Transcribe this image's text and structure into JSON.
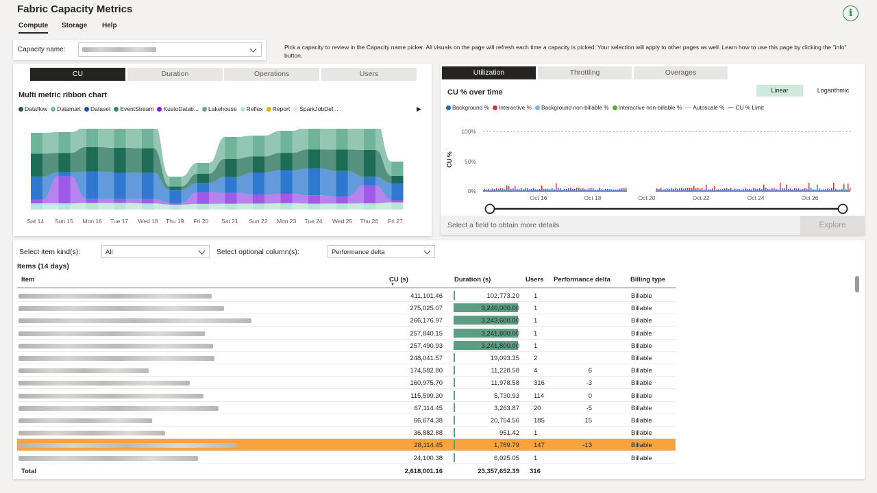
{
  "app_title": "Fabric Capacity Metrics",
  "nav": [
    "Compute",
    "Storage",
    "Help"
  ],
  "info_icon": "info-icon",
  "instruction": "Pick a capacity to review in the Capacity name picker. All visuals on the page will refresh each time a capacity is picked. Your selection will apply to other pages as well. Learn how to use this page by clicking the \"info\" button.",
  "capacity": {
    "label": "Capacity name:",
    "value_blurred": true
  },
  "left_tabs": [
    "CU",
    "Duration",
    "Operations",
    "Users"
  ],
  "ribbon": {
    "title": "Multi metric ribbon chart",
    "legend": [
      {
        "name": "Dataflow",
        "color": "#1e5b4a"
      },
      {
        "name": "Datamart",
        "color": "#7bb8a2"
      },
      {
        "name": "Dataset",
        "color": "#1a52b2"
      },
      {
        "name": "EventStream",
        "color": "#2f8a68"
      },
      {
        "name": "KustoDatab...",
        "color": "#7d1ee0"
      },
      {
        "name": "Lakehouse",
        "color": "#6ea58e"
      },
      {
        "name": "Reflex",
        "color": "#b9e4d2"
      },
      {
        "name": "Report",
        "color": "#e0b210"
      },
      {
        "name": "SparkJobDef...",
        "color": "#d4eee5"
      }
    ],
    "x_labels": [
      "Sat 14",
      "Sun 15",
      "Mon 16",
      "Tue 17",
      "Wed 18",
      "Thu 19",
      "Fri 20",
      "Sat 21",
      "Sun 22",
      "Mon 23",
      "Tue 24",
      "Wed 25",
      "Thu 26",
      "Fri 27"
    ]
  },
  "right_tabs": [
    "Utilization",
    "Throttling",
    "Overages"
  ],
  "cu_chart": {
    "title": "CU % over time",
    "toggle": [
      "Linear",
      "Logarithmic"
    ],
    "legend": [
      {
        "name": "Background %",
        "color": "#1a66c9"
      },
      {
        "name": "Interactive %",
        "color": "#d13438"
      },
      {
        "name": "Background non-billable %",
        "color": "#7fb6e8"
      },
      {
        "name": "Interactive non-billable %",
        "color": "#5ca82d"
      },
      {
        "name": "Autoscale %",
        "color": "#e6a055"
      },
      {
        "name": "CU % Limit",
        "color": "#605e5c"
      }
    ],
    "ylabel": "CU %",
    "y_ticks": [
      "100%",
      "50%",
      "0%"
    ],
    "x_labels": [
      "Oct 16",
      "Oct 18",
      "Oct 20",
      "Oct 22",
      "Oct 24",
      "Oct 26"
    ]
  },
  "details": {
    "text": "Select a field to obtain more details",
    "explore": "Explore"
  },
  "filters": {
    "kind_label": "Select item kind(s):",
    "kind_value": "All",
    "optional_label": "Select optional column(s):",
    "optional_value": "Performance delta"
  },
  "table": {
    "heading": "Items (14 days)",
    "columns": [
      "Item",
      "CU (s)",
      "Duration (s)",
      "Users",
      "Performance delta",
      "Billing type"
    ],
    "rows": [
      {
        "cu": "411,101.46",
        "duration": "102,773.20",
        "dur_fraction": 0.0,
        "users": "1",
        "delta": "",
        "billing": "Billable"
      },
      {
        "cu": "275,025.07",
        "duration": "3,240,000.00",
        "dur_fraction": 1.0,
        "users": "1",
        "delta": "",
        "billing": "Billable"
      },
      {
        "cu": "266,176.97",
        "duration": "3,243,600.00",
        "dur_fraction": 1.0,
        "users": "1",
        "delta": "",
        "billing": "Billable"
      },
      {
        "cu": "257,840.15",
        "duration": "3,241,800.00",
        "dur_fraction": 1.0,
        "users": "1",
        "delta": "",
        "billing": "Billable"
      },
      {
        "cu": "257,490.93",
        "duration": "3,241,800.00",
        "dur_fraction": 1.0,
        "users": "1",
        "delta": "",
        "billing": "Billable"
      },
      {
        "cu": "248,041.57",
        "duration": "19,093.35",
        "dur_fraction": 0.0,
        "users": "2",
        "delta": "",
        "billing": "Billable"
      },
      {
        "cu": "174,582.80",
        "duration": "11,228.58",
        "dur_fraction": 0.0,
        "users": "4",
        "delta": "6",
        "billing": "Billable"
      },
      {
        "cu": "160,975.70",
        "duration": "11,978.58",
        "dur_fraction": 0.0,
        "users": "316",
        "delta": "-3",
        "billing": "Billable"
      },
      {
        "cu": "115,599.30",
        "duration": "5,730.93",
        "dur_fraction": 0.0,
        "users": "114",
        "delta": "0",
        "billing": "Billable"
      },
      {
        "cu": "67,114.45",
        "duration": "3,263.87",
        "dur_fraction": 0.0,
        "users": "20",
        "delta": "-5",
        "billing": "Billable"
      },
      {
        "cu": "66,674.38",
        "duration": "20,754.56",
        "dur_fraction": 0.0,
        "users": "185",
        "delta": "15",
        "billing": "Billable"
      },
      {
        "cu": "36,882.88",
        "duration": "951.42",
        "dur_fraction": 0.0,
        "users": "1",
        "delta": "",
        "billing": "Billable"
      },
      {
        "cu": "28,114.45",
        "duration": "1,789.79",
        "dur_fraction": 0.0,
        "users": "147",
        "delta": "-13",
        "billing": "Billable",
        "highlight": true
      },
      {
        "cu": "24,100.38",
        "duration": "6,025.05",
        "dur_fraction": 0.0,
        "users": "1",
        "delta": "",
        "billing": "Billable"
      }
    ],
    "total": {
      "label": "Total",
      "cu": "2,618,001.16",
      "duration": "23,357,652.39",
      "users": "316"
    }
  }
}
